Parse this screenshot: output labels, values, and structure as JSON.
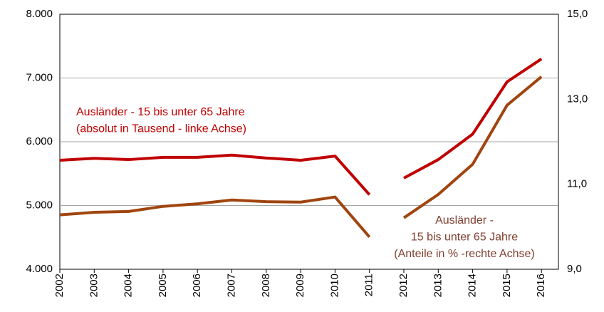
{
  "chart_data": {
    "type": "line",
    "categories": [
      "2002",
      "2003",
      "2004",
      "2005",
      "2006",
      "2007",
      "2008",
      "2009",
      "2010",
      "2011",
      "2012",
      "2013",
      "2014",
      "2015",
      "2016"
    ],
    "series": [
      {
        "color": "#c00000",
        "values": [
          5710,
          5740,
          5720,
          5755,
          5755,
          5790,
          5745,
          5710,
          5775,
          5170,
          null,
          null,
          null,
          null,
          null
        ]
      },
      {
        "color": "#c00000",
        "values": [
          null,
          null,
          null,
          null,
          null,
          null,
          null,
          null,
          null,
          null,
          5430,
          5720,
          6120,
          6940,
          7300
        ]
      },
      {
        "color": "#a0450f",
        "axis": "y2",
        "values": [
          10.28,
          10.34,
          10.36,
          10.48,
          10.54,
          10.63,
          10.59,
          10.58,
          10.7,
          9.76,
          null,
          null,
          null,
          null,
          null
        ]
      },
      {
        "color": "#a0450f",
        "axis": "y2",
        "values": [
          null,
          null,
          null,
          null,
          null,
          null,
          null,
          null,
          null,
          null,
          10.21,
          10.76,
          11.47,
          12.86,
          13.53
        ]
      }
    ],
    "ylim": [
      4000,
      8000
    ],
    "yticks": [
      {
        "value": 4000,
        "label": "4.000"
      },
      {
        "value": 5000,
        "label": "5.000"
      },
      {
        "value": 6000,
        "label": "6.000"
      },
      {
        "value": 7000,
        "label": "7.000"
      },
      {
        "value": 8000,
        "label": "8.000"
      }
    ],
    "y2lim": [
      9,
      15
    ],
    "y2ticks": [
      {
        "value": 9,
        "label": "9,0"
      },
      {
        "value": 11,
        "label": "11,0"
      },
      {
        "value": 13,
        "label": "13,0"
      },
      {
        "value": 15,
        "label": "15,0"
      }
    ],
    "grid": true,
    "annotations": [
      {
        "color": "#c00000",
        "lines": [
          "Ausländer - 15 bis unter 65 Jahre",
          "(absolut in Tausend - linke Achse)"
        ]
      },
      {
        "color": "#7f3f2f",
        "lines": [
          "Ausländer -",
          "15 bis unter 65 Jahre",
          "(Anteile in % -rechte Achse)"
        ]
      }
    ]
  }
}
